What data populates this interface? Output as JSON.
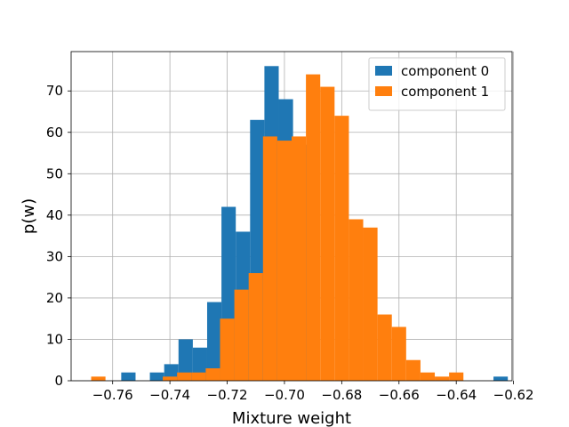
{
  "chart_data": {
    "type": "histogram",
    "xlabel": "Mixture weight",
    "ylabel": "p(w)",
    "xlim": [
      -0.7745,
      -0.6205
    ],
    "ylim": [
      0,
      79.5
    ],
    "x_ticks": [
      -0.76,
      -0.74,
      -0.72,
      -0.7,
      -0.68,
      -0.66,
      -0.64,
      -0.62
    ],
    "x_tick_labels": [
      "−0.76",
      "−0.74",
      "−0.72",
      "−0.70",
      "−0.68",
      "−0.66",
      "−0.64",
      "−0.62"
    ],
    "y_ticks": [
      0,
      10,
      20,
      30,
      40,
      50,
      60,
      70
    ],
    "y_tick_labels": [
      "0",
      "10",
      "20",
      "30",
      "40",
      "50",
      "60",
      "70"
    ],
    "grid": true,
    "legend_position": "top-right",
    "series": [
      {
        "name": "component 0",
        "color": "#1f77b4",
        "bins": [
          {
            "x0": -0.757,
            "x1": -0.752,
            "count": 2
          },
          {
            "x0": -0.747,
            "x1": -0.742,
            "count": 2
          },
          {
            "x0": -0.742,
            "x1": -0.737,
            "count": 4
          },
          {
            "x0": -0.737,
            "x1": -0.732,
            "count": 10
          },
          {
            "x0": -0.732,
            "x1": -0.727,
            "count": 8
          },
          {
            "x0": -0.727,
            "x1": -0.722,
            "count": 19
          },
          {
            "x0": -0.722,
            "x1": -0.717,
            "count": 42
          },
          {
            "x0": -0.717,
            "x1": -0.712,
            "count": 36
          },
          {
            "x0": -0.712,
            "x1": -0.707,
            "count": 63
          },
          {
            "x0": -0.707,
            "x1": -0.702,
            "count": 76
          },
          {
            "x0": -0.702,
            "x1": -0.697,
            "count": 68
          },
          {
            "x0": -0.697,
            "x1": -0.692,
            "count": 57
          },
          {
            "x0": -0.627,
            "x1": -0.622,
            "count": 1
          }
        ]
      },
      {
        "name": "component 1",
        "color": "#ff7f0e",
        "bins": [
          {
            "x0": -0.7675,
            "x1": -0.7625,
            "count": 1
          },
          {
            "x0": -0.7425,
            "x1": -0.7375,
            "count": 1
          },
          {
            "x0": -0.7375,
            "x1": -0.7325,
            "count": 2
          },
          {
            "x0": -0.7325,
            "x1": -0.7275,
            "count": 2
          },
          {
            "x0": -0.7275,
            "x1": -0.7225,
            "count": 3
          },
          {
            "x0": -0.7225,
            "x1": -0.7175,
            "count": 15
          },
          {
            "x0": -0.7175,
            "x1": -0.7125,
            "count": 22
          },
          {
            "x0": -0.7125,
            "x1": -0.7075,
            "count": 26
          },
          {
            "x0": -0.7075,
            "x1": -0.7025,
            "count": 59
          },
          {
            "x0": -0.7025,
            "x1": -0.6975,
            "count": 58
          },
          {
            "x0": -0.6975,
            "x1": -0.6925,
            "count": 59
          },
          {
            "x0": -0.6925,
            "x1": -0.6875,
            "count": 74
          },
          {
            "x0": -0.6875,
            "x1": -0.6825,
            "count": 71
          },
          {
            "x0": -0.6825,
            "x1": -0.6775,
            "count": 64
          },
          {
            "x0": -0.6775,
            "x1": -0.6725,
            "count": 39
          },
          {
            "x0": -0.6725,
            "x1": -0.6675,
            "count": 37
          },
          {
            "x0": -0.6675,
            "x1": -0.6625,
            "count": 16
          },
          {
            "x0": -0.6625,
            "x1": -0.6575,
            "count": 13
          },
          {
            "x0": -0.6575,
            "x1": -0.6525,
            "count": 5
          },
          {
            "x0": -0.6525,
            "x1": -0.6475,
            "count": 2
          },
          {
            "x0": -0.6475,
            "x1": -0.6425,
            "count": 1
          },
          {
            "x0": -0.6425,
            "x1": -0.6375,
            "count": 2
          }
        ]
      }
    ]
  }
}
